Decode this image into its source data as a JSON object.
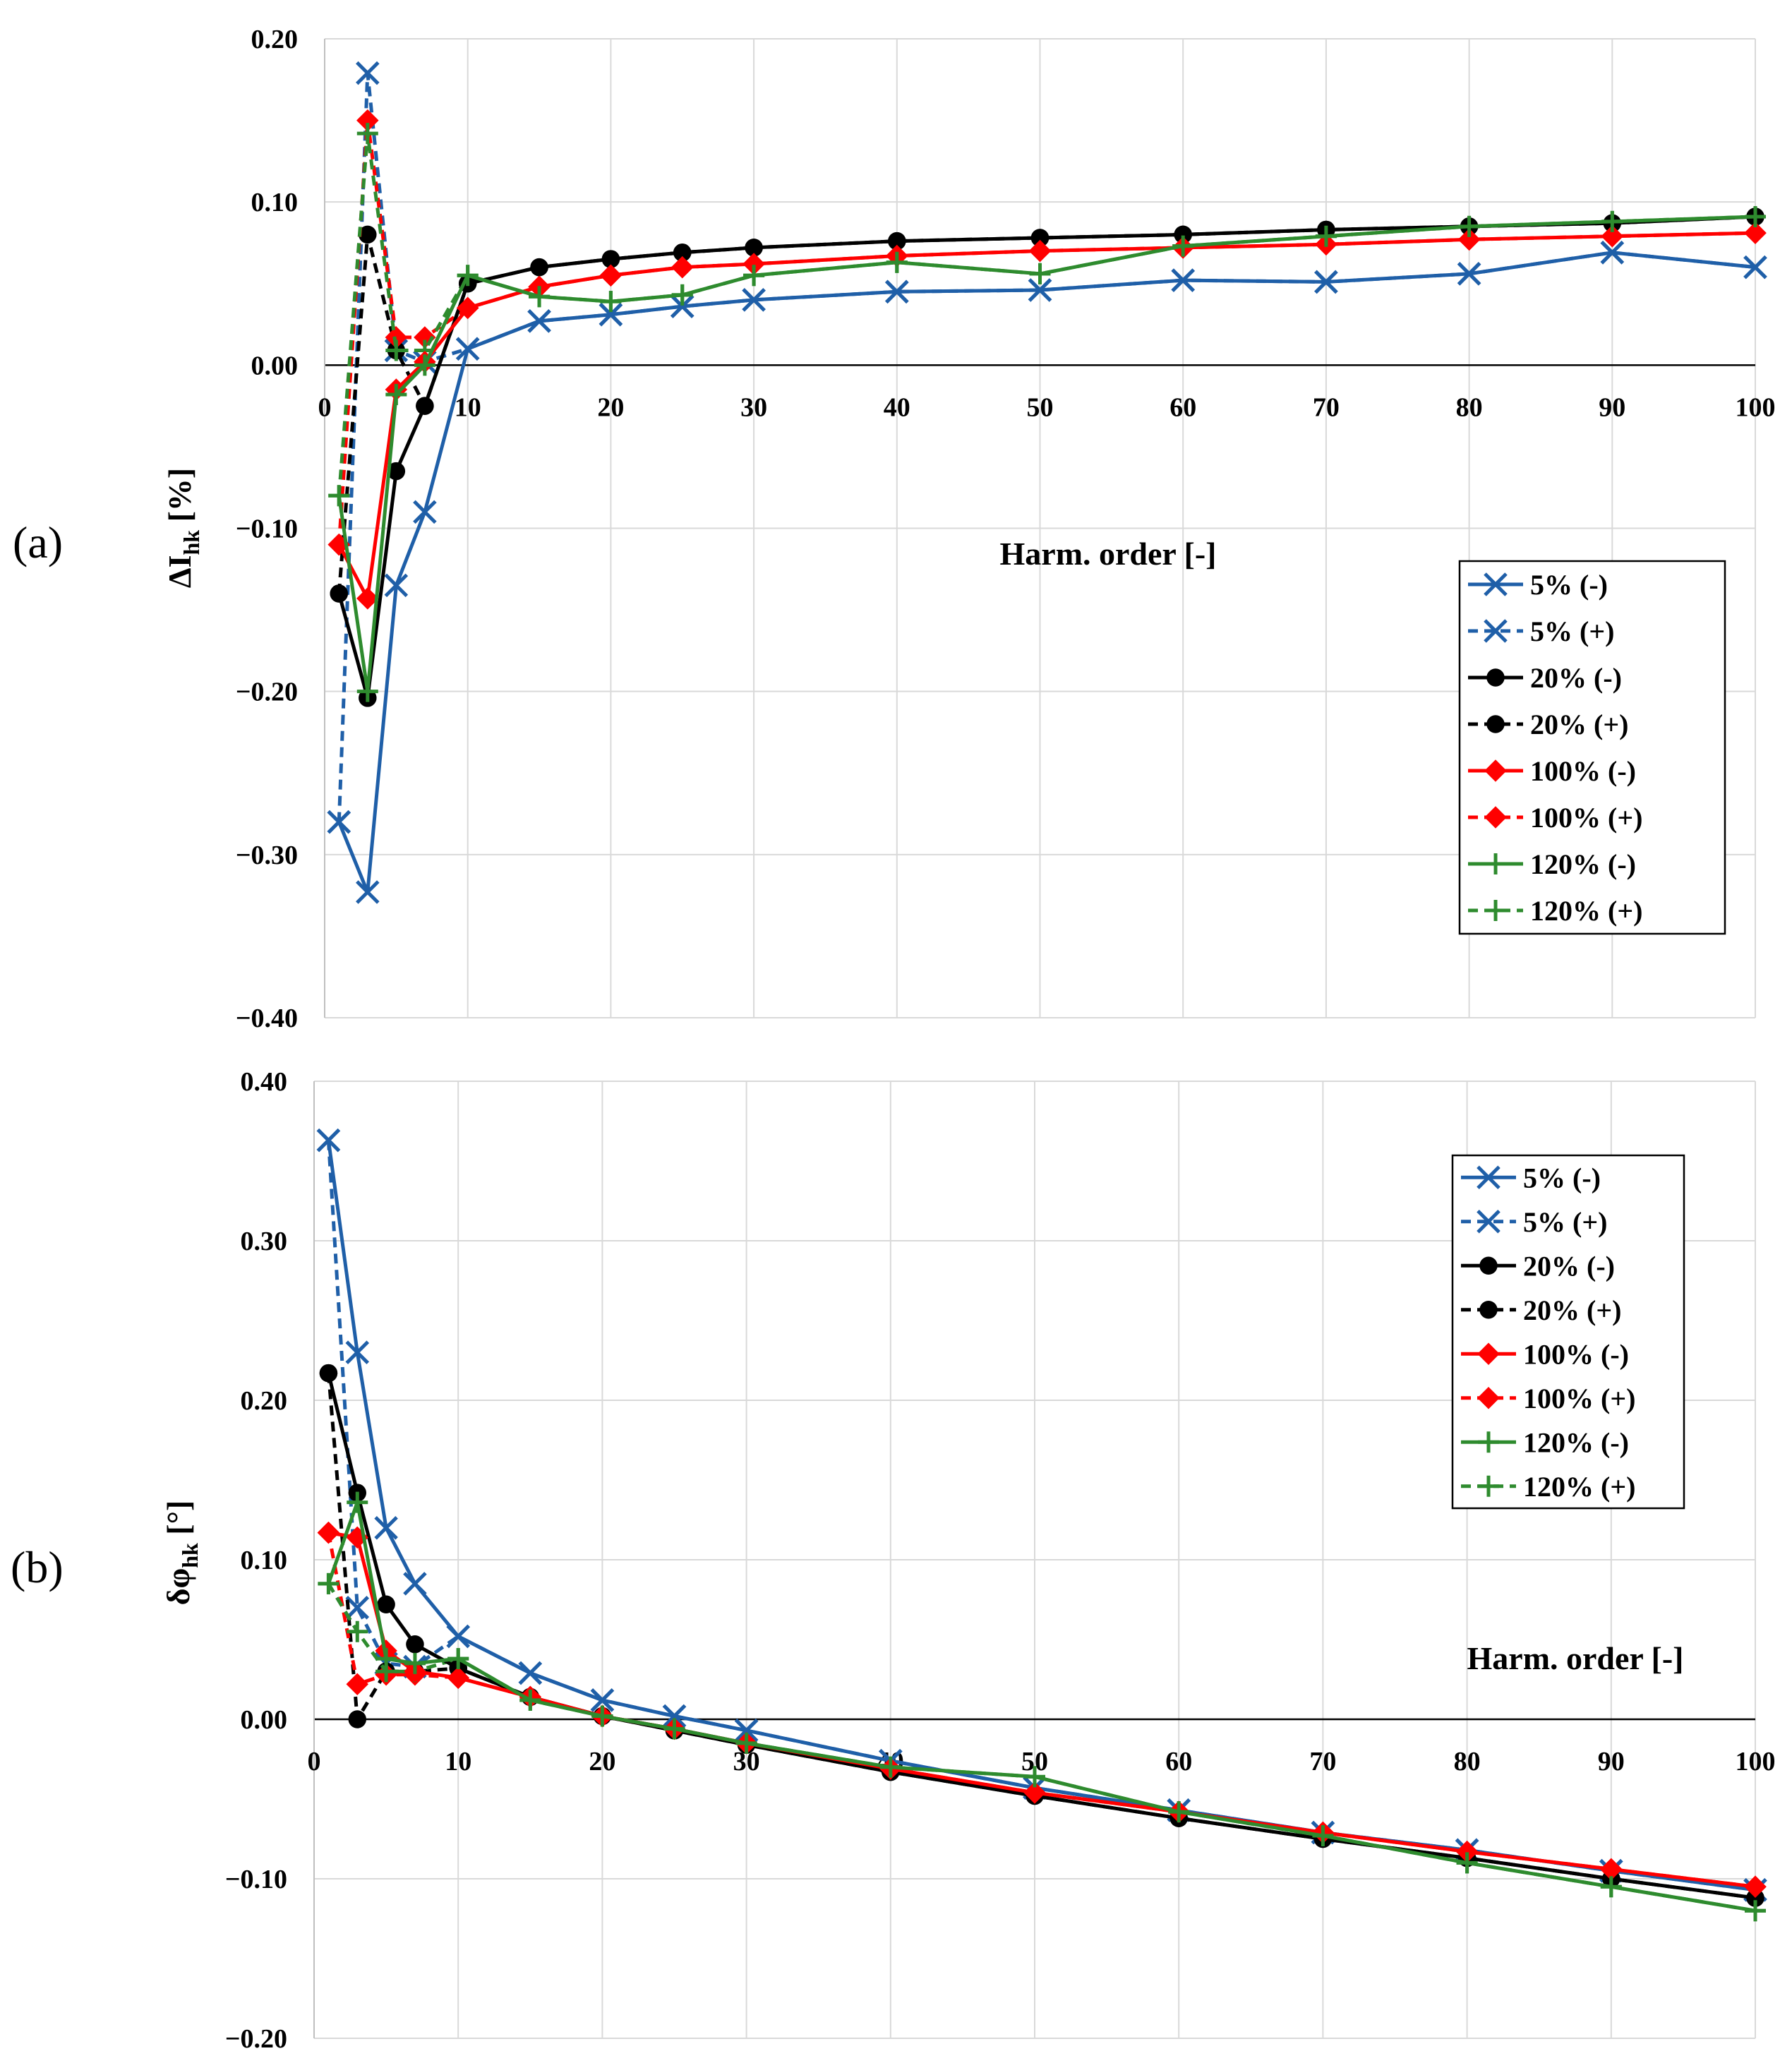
{
  "figure": {
    "panel_a_label": "(a)",
    "panel_b_label": "(b)"
  },
  "chart_data": [
    {
      "id": "a",
      "type": "line",
      "ylabel_main": "ΔI",
      "ylabel_sub": "hk",
      "ylabel_unit": " [%]",
      "xlabel": "Harm. order [-]",
      "xlim": [
        0,
        100
      ],
      "ylim": [
        -0.4,
        0.2
      ],
      "xticks": [
        0,
        10,
        20,
        30,
        40,
        50,
        60,
        70,
        80,
        90,
        100
      ],
      "yticks": [
        0.2,
        0.1,
        0.0,
        -0.1,
        -0.2,
        -0.3,
        -0.4
      ],
      "ytick_labels": [
        "0.20",
        "0.10",
        "0.00",
        "−0.10",
        "−0.20",
        "−0.30",
        "−0.40"
      ],
      "grid": true,
      "legend_position": "right-middle",
      "x": [
        1,
        3,
        5,
        7,
        10,
        15,
        20,
        25,
        30,
        40,
        50,
        60,
        70,
        80,
        90,
        100
      ],
      "series": [
        {
          "name": "5% (-)",
          "color": "#1f5fa8",
          "marker": "x",
          "dashed": false,
          "values": [
            -0.28,
            -0.323,
            -0.135,
            -0.09,
            0.01,
            0.027,
            0.031,
            0.036,
            0.04,
            0.045,
            0.046,
            0.052,
            0.051,
            0.056,
            0.069,
            0.06
          ]
        },
        {
          "name": "5% (+)",
          "color": "#1f5fa8",
          "marker": "x",
          "dashed": true,
          "values": [
            -0.28,
            0.179,
            0.009,
            0.002,
            0.01,
            0.027,
            0.031,
            0.036,
            0.04,
            0.045,
            0.046,
            0.052,
            0.051,
            0.056,
            0.069,
            0.06
          ]
        },
        {
          "name": "20% (-)",
          "color": "#000000",
          "marker": "circle",
          "dashed": false,
          "values": [
            -0.14,
            -0.204,
            -0.065,
            -0.025,
            0.05,
            0.06,
            0.065,
            0.069,
            0.072,
            0.076,
            0.078,
            0.08,
            0.083,
            0.085,
            0.087,
            0.091
          ]
        },
        {
          "name": "20% (+)",
          "color": "#000000",
          "marker": "circle",
          "dashed": true,
          "values": [
            -0.14,
            0.08,
            0.009,
            -0.025,
            0.05,
            0.06,
            0.065,
            0.069,
            0.072,
            0.076,
            0.078,
            0.08,
            0.083,
            0.085,
            0.087,
            0.091
          ]
        },
        {
          "name": "100% (-)",
          "color": "#ff0000",
          "marker": "diamond",
          "dashed": false,
          "values": [
            -0.11,
            -0.143,
            -0.015,
            0.002,
            0.035,
            0.048,
            0.055,
            0.06,
            0.062,
            0.067,
            0.07,
            0.072,
            0.074,
            0.077,
            0.079,
            0.081
          ]
        },
        {
          "name": "100% (+)",
          "color": "#ff0000",
          "marker": "diamond",
          "dashed": true,
          "values": [
            -0.11,
            0.15,
            0.017,
            0.017,
            0.035,
            0.048,
            0.055,
            0.06,
            0.062,
            0.067,
            0.07,
            0.072,
            0.074,
            0.077,
            0.079,
            0.081
          ]
        },
        {
          "name": "120% (-)",
          "color": "#2e8b2e",
          "marker": "plus",
          "dashed": false,
          "values": [
            -0.08,
            -0.2,
            -0.018,
            0.0,
            0.055,
            0.042,
            0.039,
            0.043,
            0.055,
            0.063,
            0.056,
            0.073,
            0.079,
            0.085,
            0.088,
            0.091
          ]
        },
        {
          "name": "120% (+)",
          "color": "#2e8b2e",
          "marker": "plus",
          "dashed": true,
          "values": [
            -0.08,
            0.142,
            0.009,
            0.009,
            0.055,
            0.042,
            0.039,
            0.043,
            0.055,
            0.063,
            0.056,
            0.073,
            0.079,
            0.085,
            0.088,
            0.091
          ]
        }
      ]
    },
    {
      "id": "b",
      "type": "line",
      "ylabel_main": "δφ",
      "ylabel_sub": "hk",
      "ylabel_unit": " [°]",
      "xlabel": "Harm. order [-]",
      "xlim": [
        0,
        100
      ],
      "ylim": [
        -0.2,
        0.4
      ],
      "xticks": [
        0,
        10,
        20,
        30,
        40,
        50,
        60,
        70,
        80,
        90,
        100
      ],
      "yticks": [
        0.4,
        0.3,
        0.2,
        0.1,
        0.0,
        -0.1,
        -0.2
      ],
      "ytick_labels": [
        "0.40",
        "0.30",
        "0.20",
        "0.10",
        "0.00",
        "−0.10",
        "−0.20"
      ],
      "grid": true,
      "legend_position": "top-right",
      "x": [
        1,
        3,
        5,
        7,
        10,
        15,
        20,
        25,
        30,
        40,
        50,
        60,
        70,
        80,
        90,
        100
      ],
      "series": [
        {
          "name": "5% (-)",
          "color": "#1f5fa8",
          "marker": "x",
          "dashed": false,
          "values": [
            0.363,
            0.23,
            0.12,
            0.085,
            0.052,
            0.029,
            0.012,
            0.002,
            -0.007,
            -0.026,
            -0.043,
            -0.057,
            -0.071,
            -0.082,
            -0.095,
            -0.107
          ]
        },
        {
          "name": "5% (+)",
          "color": "#1f5fa8",
          "marker": "x",
          "dashed": true,
          "values": [
            0.363,
            0.07,
            0.035,
            0.033,
            0.052,
            0.029,
            0.012,
            0.002,
            -0.007,
            -0.026,
            -0.043,
            -0.057,
            -0.071,
            -0.082,
            -0.095,
            -0.107
          ]
        },
        {
          "name": "20% (-)",
          "color": "#000000",
          "marker": "circle",
          "dashed": false,
          "values": [
            0.217,
            0.142,
            0.072,
            0.047,
            0.032,
            0.014,
            0.002,
            -0.007,
            -0.016,
            -0.033,
            -0.048,
            -0.062,
            -0.075,
            -0.087,
            -0.1,
            -0.112
          ]
        },
        {
          "name": "20% (+)",
          "color": "#000000",
          "marker": "circle",
          "dashed": true,
          "values": [
            0.217,
            0.0,
            0.03,
            0.03,
            0.032,
            0.014,
            0.002,
            -0.007,
            -0.016,
            -0.033,
            -0.048,
            -0.062,
            -0.075,
            -0.087,
            -0.1,
            -0.112
          ]
        },
        {
          "name": "100% (-)",
          "color": "#ff0000",
          "marker": "diamond",
          "dashed": false,
          "values": [
            0.117,
            0.114,
            0.043,
            0.03,
            0.026,
            0.014,
            0.002,
            -0.006,
            -0.015,
            -0.031,
            -0.046,
            -0.058,
            -0.071,
            -0.083,
            -0.094,
            -0.105
          ]
        },
        {
          "name": "100% (+)",
          "color": "#ff0000",
          "marker": "diamond",
          "dashed": true,
          "values": [
            0.117,
            0.022,
            0.028,
            0.028,
            0.026,
            0.014,
            0.002,
            -0.006,
            -0.015,
            -0.031,
            -0.046,
            -0.058,
            -0.071,
            -0.083,
            -0.094,
            -0.105
          ]
        },
        {
          "name": "120% (-)",
          "color": "#2e8b2e",
          "marker": "plus",
          "dashed": false,
          "values": [
            0.085,
            0.136,
            0.038,
            0.035,
            0.038,
            0.012,
            0.002,
            -0.006,
            -0.015,
            -0.03,
            -0.036,
            -0.058,
            -0.073,
            -0.09,
            -0.105,
            -0.12
          ]
        },
        {
          "name": "120% (+)",
          "color": "#2e8b2e",
          "marker": "plus",
          "dashed": true,
          "values": [
            0.085,
            0.055,
            0.03,
            0.03,
            0.038,
            0.012,
            0.002,
            -0.006,
            -0.015,
            -0.03,
            -0.036,
            -0.058,
            -0.073,
            -0.09,
            -0.105,
            -0.12
          ]
        }
      ]
    }
  ]
}
